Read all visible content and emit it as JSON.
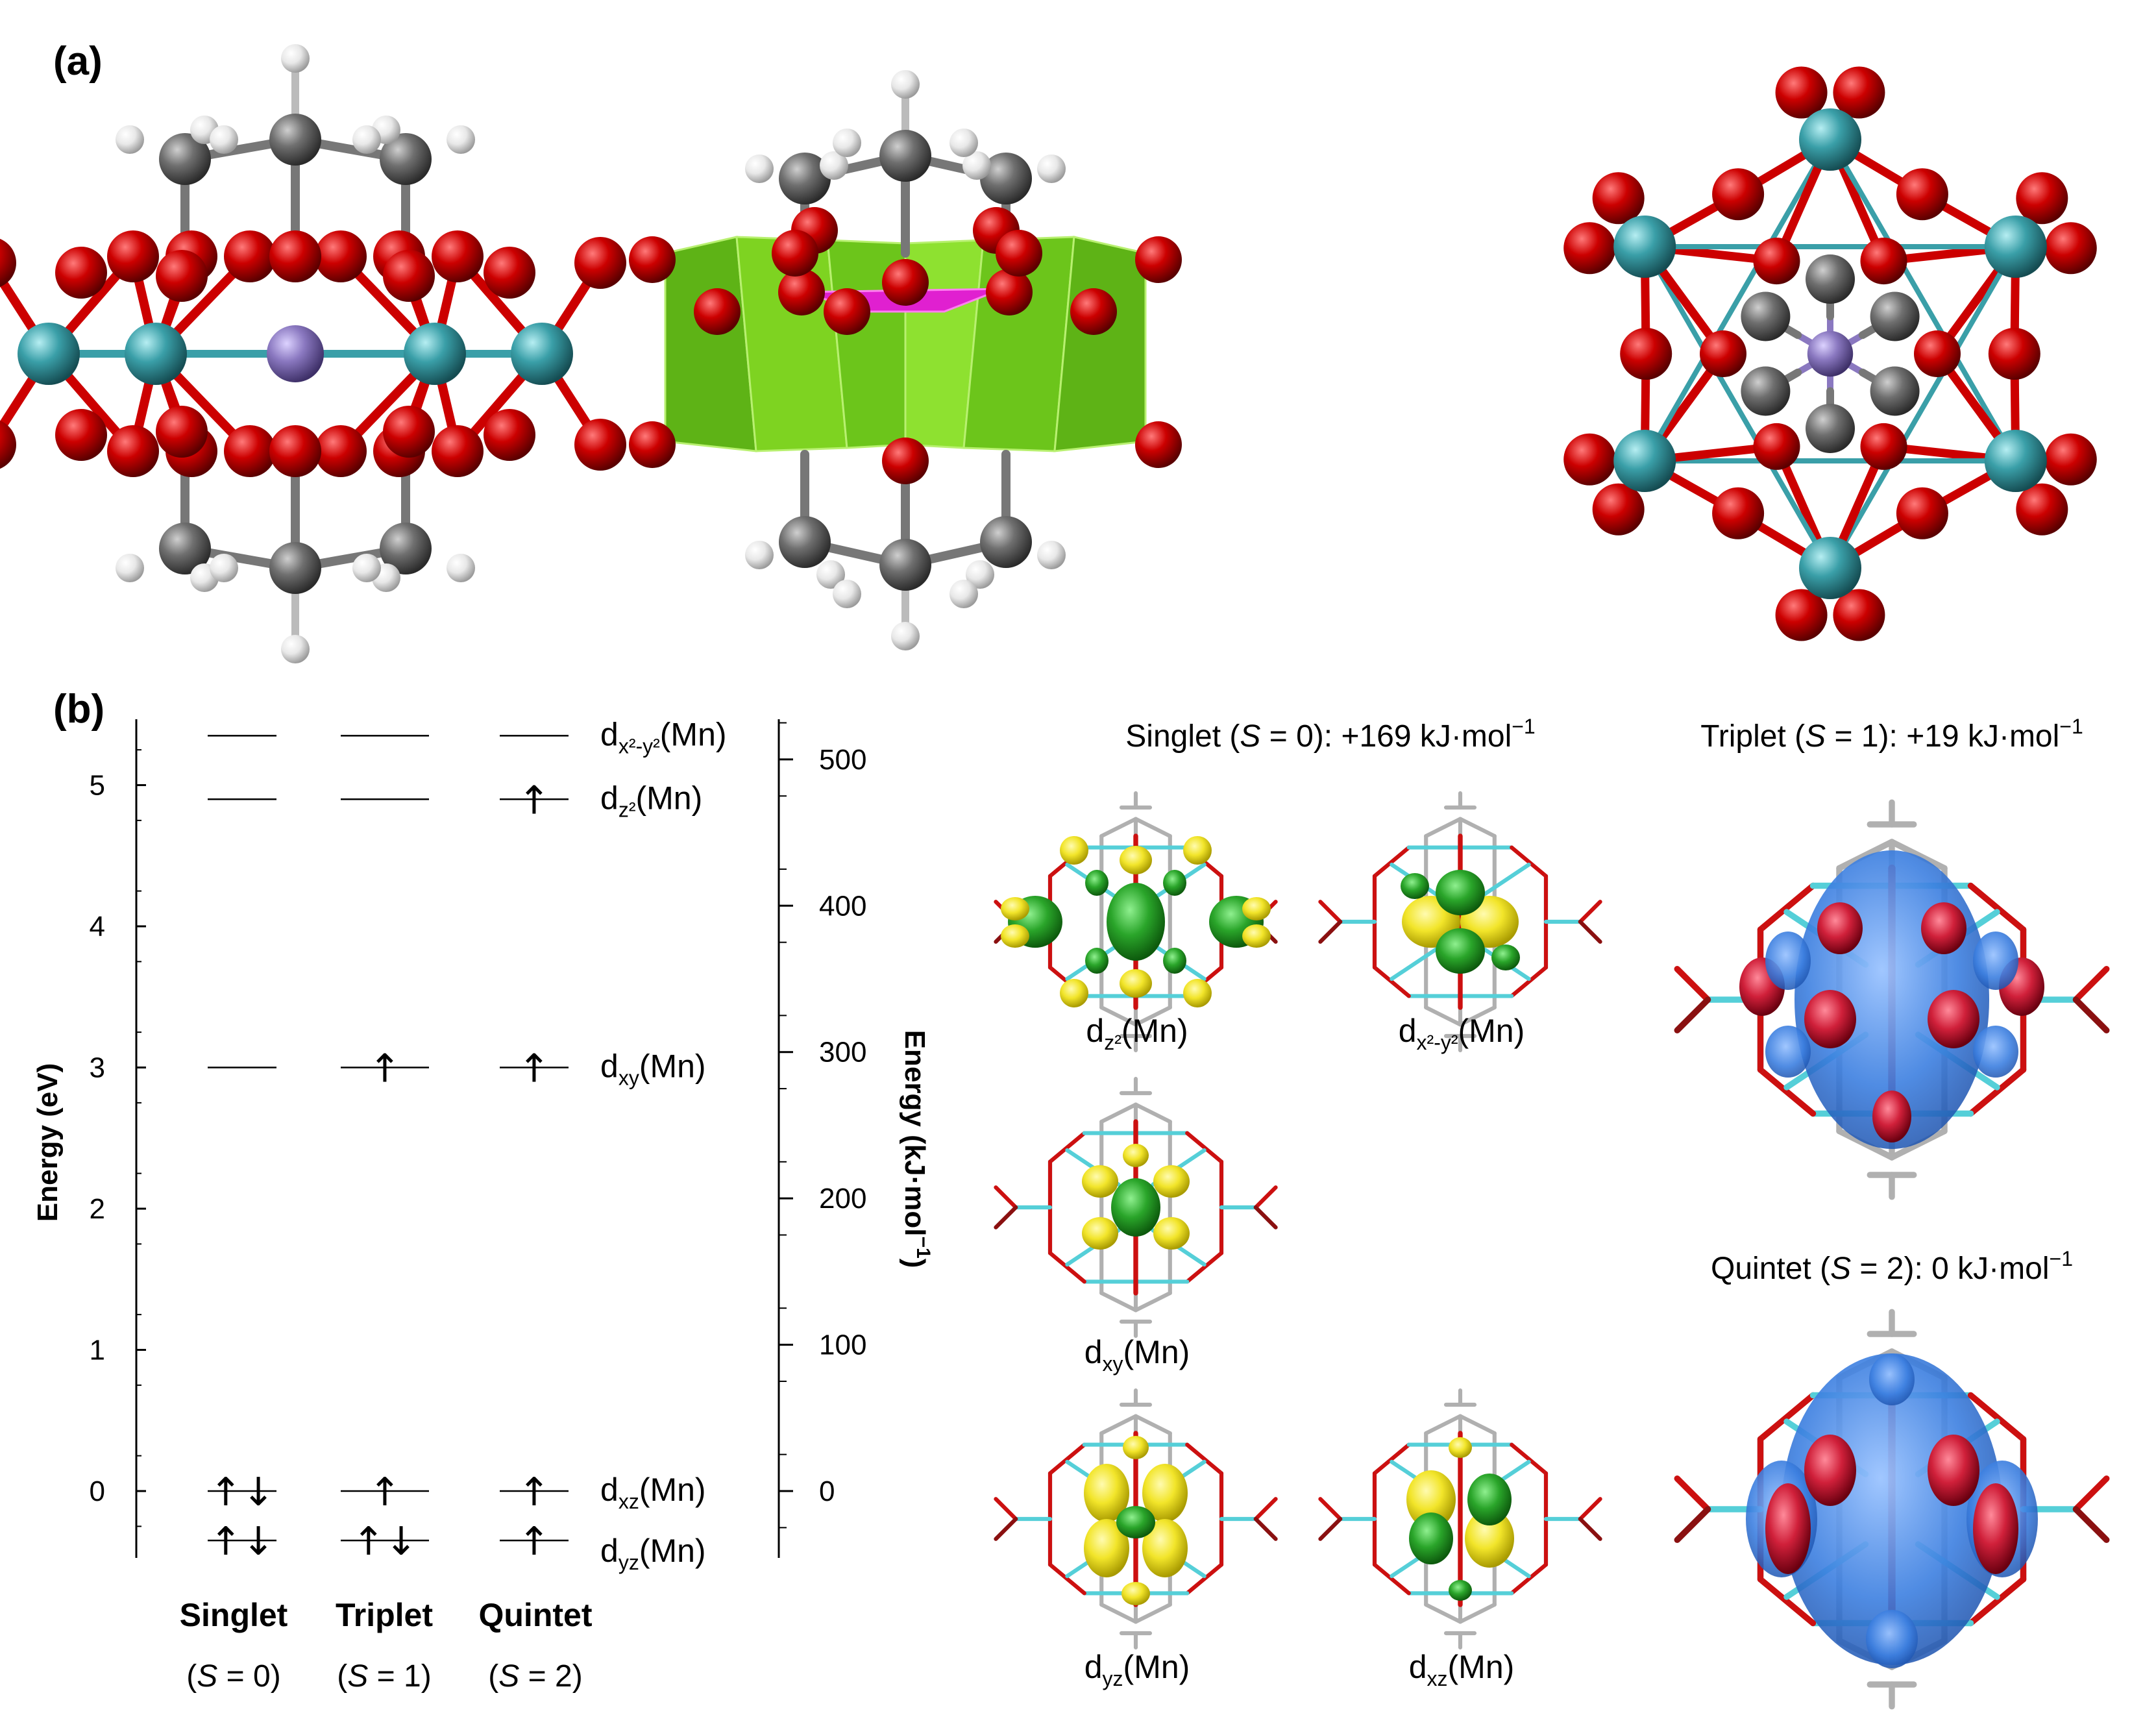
{
  "panel_labels": {
    "a": "(a)",
    "b": "(b)"
  },
  "energy_axis": {
    "left_label": "Energy (eV)",
    "right_label_main": "Energy (kJ·mol",
    "right_label_sup": "−1",
    "right_label_end": ")",
    "left_ticks": [
      "0",
      "1",
      "2",
      "3",
      "4",
      "5"
    ],
    "right_ticks": [
      "0",
      "100",
      "200",
      "300",
      "400",
      "500"
    ]
  },
  "chart_data": {
    "type": "energy-level-diagram",
    "y_unit_left": "eV",
    "y_unit_right": "kJ·mol−1",
    "ylim_ev": [
      -0.45,
      5.55
    ],
    "states": [
      {
        "name": "Singlet",
        "spin": "S = 0"
      },
      {
        "name": "Triplet",
        "spin": "S = 1"
      },
      {
        "name": "Quintet",
        "spin": "S = 2"
      }
    ],
    "levels": [
      {
        "orbital": "dx²-y²(Mn)",
        "energy_ev": 5.35,
        "occupancy": [
          "",
          "",
          ""
        ]
      },
      {
        "orbital": "dz²(Mn)",
        "energy_ev": 4.9,
        "occupancy": [
          "",
          "",
          "↑"
        ]
      },
      {
        "orbital": "dxy(Mn)",
        "energy_ev": 3.0,
        "occupancy": [
          "",
          "↑",
          "↑"
        ]
      },
      {
        "orbital": "dxz(Mn)",
        "energy_ev": 0.0,
        "occupancy": [
          "↑↓",
          "↑",
          "↑"
        ]
      },
      {
        "orbital": "dyz(Mn)",
        "energy_ev": -0.35,
        "occupancy": [
          "↑↓",
          "↑↓",
          "↑"
        ]
      }
    ]
  },
  "level_labels": [
    {
      "base": "d",
      "sub": "x²-y²",
      "tail": "(Mn)"
    },
    {
      "base": "d",
      "sub": "z²",
      "tail": "(Mn)"
    },
    {
      "base": "d",
      "sub": "xy",
      "tail": "(Mn)"
    },
    {
      "base": "d",
      "sub": "xz",
      "tail": "(Mn)"
    },
    {
      "base": "d",
      "sub": "yz",
      "tail": "(Mn)"
    }
  ],
  "state_labels": [
    {
      "name": "Singlet",
      "pre": "(",
      "S": "S",
      "post": " = 0)"
    },
    {
      "name": "Triplet",
      "pre": "(",
      "S": "S",
      "post": " = 1)"
    },
    {
      "name": "Quintet",
      "pre": "(",
      "S": "S",
      "post": " = 2)"
    }
  ],
  "orbital_headers": {
    "singlet": {
      "pre": "Singlet (",
      "S": "S",
      "post": " = 0): +169 kJ·mol",
      "sup": "−1"
    },
    "triplet": {
      "pre": "Triplet (",
      "S": "S",
      "post": " = 1): +19 kJ·mol",
      "sup": "−1"
    },
    "quintet": {
      "pre": "Quintet (",
      "S": "S",
      "post": " = 2): 0 kJ·mol",
      "sup": "−1"
    }
  },
  "orbital_captions": [
    {
      "base": "d",
      "sub": "z²",
      "tail": "(Mn)"
    },
    {
      "base": "d",
      "sub": "x²-y²",
      "tail": "(Mn)"
    },
    {
      "base": "d",
      "sub": "xy",
      "tail": "(Mn)"
    },
    {
      "base": "d",
      "sub": "yz",
      "tail": "(Mn)"
    },
    {
      "base": "d",
      "sub": "xz",
      "tail": "(Mn)"
    }
  ],
  "colors": {
    "oxygen": "#cc0000",
    "metal": "#3a9fa8",
    "manganese": "#8a78c0",
    "carbon": "#6f6f6f",
    "hydrogen": "#e8e8e8",
    "polyhedron": "#7ed321",
    "center_polyhedron": "#e020d0",
    "lobe_yellow": "#f2e52a",
    "lobe_green": "#2aa52a",
    "spin_blue": "#3c7fe0",
    "spin_red": "#d0203a"
  }
}
